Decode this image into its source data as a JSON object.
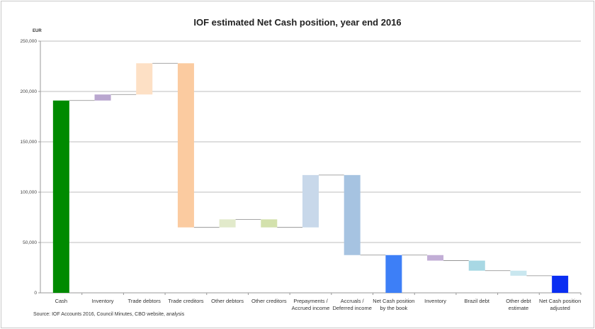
{
  "chart_data": {
    "type": "waterfall",
    "title": "IOF estimated Net Cash position, year end 2016",
    "ylabel": "EUR",
    "xlabel": "",
    "ylim": [
      0,
      250000
    ],
    "yticks": [
      "0",
      "50,000",
      "100,000",
      "150,000",
      "200,000",
      "250,000"
    ],
    "ytick_values": [
      0,
      50000,
      100000,
      150000,
      200000,
      250000
    ],
    "grid": true,
    "legend": "none",
    "source": "Source: IOF Accounts 2016, Council Minutes, CBO website, analysis",
    "categories": [
      {
        "label": [
          "Cash"
        ],
        "kind": "total",
        "start": 0,
        "end": 191000,
        "color": "#008a00"
      },
      {
        "label": [
          "Inventory"
        ],
        "kind": "delta",
        "start": 191000,
        "end": 197000,
        "color": "#b9a6cf"
      },
      {
        "label": [
          "Trade debtors"
        ],
        "kind": "delta",
        "start": 197000,
        "end": 228000,
        "color": "#fde0c5"
      },
      {
        "label": [
          "Trade creditors"
        ],
        "kind": "delta",
        "start": 228000,
        "end": 65000,
        "color": "#fbcba0"
      },
      {
        "label": [
          "Other debtors"
        ],
        "kind": "delta",
        "start": 65000,
        "end": 73000,
        "color": "#e2eacb"
      },
      {
        "label": [
          "Other creditors"
        ],
        "kind": "delta",
        "start": 73000,
        "end": 65000,
        "color": "#d3e1ac"
      },
      {
        "label": [
          "Prepayments /",
          "Accrued income"
        ],
        "kind": "delta",
        "start": 65000,
        "end": 117000,
        "color": "#c8d8ea"
      },
      {
        "label": [
          "Accruals /",
          "Deferred income"
        ],
        "kind": "delta",
        "start": 117000,
        "end": 37500,
        "color": "#a6c3e1"
      },
      {
        "label": [
          "Net Cash position",
          "by the book"
        ],
        "kind": "total",
        "start": 0,
        "end": 37500,
        "color": "#3d7ff7"
      },
      {
        "label": [
          "Inventory"
        ],
        "kind": "delta",
        "start": 37500,
        "end": 32000,
        "color": "#c2aed6"
      },
      {
        "label": [
          "Brazil debt"
        ],
        "kind": "delta",
        "start": 32000,
        "end": 22000,
        "color": "#a8d8e4"
      },
      {
        "label": [
          "Other debt",
          "estimate"
        ],
        "kind": "delta",
        "start": 22000,
        "end": 17000,
        "color": "#c9e7ef"
      },
      {
        "label": [
          "Net Cash position",
          "adjusted"
        ],
        "kind": "total",
        "start": 0,
        "end": 17000,
        "color": "#0a2ef2"
      }
    ]
  }
}
